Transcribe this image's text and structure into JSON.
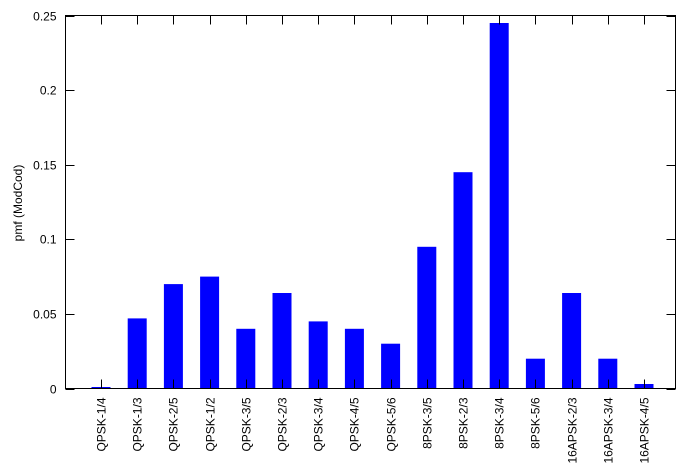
{
  "colors": {
    "bar": "#0000FF",
    "axis": "#000000",
    "background": "#FFFFFF"
  },
  "chart_data": {
    "type": "bar",
    "title": "",
    "xlabel": "",
    "ylabel": "pmf (ModCod)",
    "ylim": [
      0,
      0.25
    ],
    "yticks": [
      0,
      0.05,
      0.1,
      0.15,
      0.2,
      0.25
    ],
    "ytick_labels": [
      "0",
      "0.05",
      "0.1",
      "0.15",
      "0.2",
      "0.25"
    ],
    "grid": false,
    "legend": "none",
    "categories": [
      "QPSK-1/4",
      "QPSK-1/3",
      "QPSK-2/5",
      "QPSK-1/2",
      "QPSK-3/5",
      "QPSK-2/3",
      "QPSK-3/4",
      "QPSK-4/5",
      "QPSK-5/6",
      "8PSK-3/5",
      "8PSK-2/3",
      "8PSK-3/4",
      "8PSK-5/6",
      "16APSK-2/3",
      "16APSK-3/4",
      "16APSK-4/5"
    ],
    "values": [
      0.001,
      0.047,
      0.07,
      0.075,
      0.04,
      0.064,
      0.045,
      0.04,
      0.03,
      0.095,
      0.145,
      0.245,
      0.02,
      0.064,
      0.02,
      0.003
    ]
  }
}
